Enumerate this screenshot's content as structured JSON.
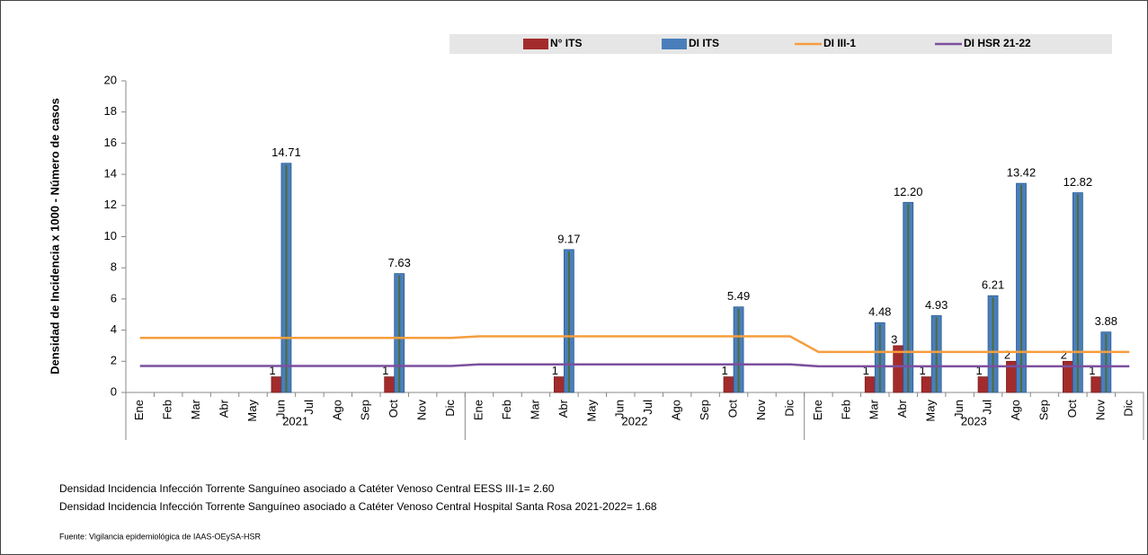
{
  "chart_data": {
    "type": "bar",
    "y_axis_label": "Densidad de Incidencia x 1000 - Número de casos",
    "categories": [
      "Ene",
      "Feb",
      "Mar",
      "Abr",
      "May",
      "Jun",
      "Jul",
      "Ago",
      "Sep",
      "Oct",
      "Nov",
      "Dic",
      "Ene",
      "Feb",
      "Mar",
      "Abr",
      "May",
      "Jun",
      "Jul",
      "Ago",
      "Sep",
      "Oct",
      "Nov",
      "Dic",
      "Ene",
      "Feb",
      "Mar",
      "Abr",
      "May",
      "Jun",
      "Jul",
      "Ago",
      "Sep",
      "Oct",
      "Nov",
      "Dic"
    ],
    "groups": [
      "2021",
      "2022",
      "2023"
    ],
    "ylim": [
      0,
      20
    ],
    "yticks": [
      0,
      2,
      4,
      6,
      8,
      10,
      12,
      14,
      16,
      18,
      20
    ],
    "series": [
      {
        "name": "N° ITS",
        "type": "bar",
        "color": "#a32b2b",
        "values": [
          null,
          null,
          null,
          null,
          null,
          1,
          null,
          null,
          null,
          1,
          null,
          null,
          null,
          null,
          null,
          1,
          null,
          null,
          null,
          null,
          null,
          1,
          null,
          null,
          null,
          null,
          1,
          3,
          1,
          null,
          1,
          2,
          null,
          2,
          1,
          null
        ]
      },
      {
        "name": "DI ITS",
        "type": "bar",
        "color": "#4a7ebb",
        "values": [
          null,
          null,
          null,
          null,
          null,
          14.71,
          null,
          null,
          null,
          7.63,
          null,
          null,
          null,
          null,
          null,
          9.17,
          null,
          null,
          null,
          null,
          null,
          5.49,
          null,
          null,
          null,
          null,
          4.48,
          12.2,
          4.93,
          null,
          6.21,
          13.42,
          null,
          12.82,
          3.88,
          null
        ],
        "value_labels": [
          null,
          null,
          null,
          null,
          null,
          "14.71",
          null,
          null,
          null,
          "7.63",
          null,
          null,
          null,
          null,
          null,
          "9.17",
          null,
          null,
          null,
          null,
          null,
          "5.49",
          null,
          null,
          null,
          null,
          "4.48",
          "12.20",
          "4.93",
          null,
          "6.21",
          "13.42",
          null,
          "12.82",
          "3.88",
          null
        ]
      },
      {
        "name": "DI III-1",
        "type": "line",
        "color": "#f59d3d",
        "values": [
          3.5,
          3.5,
          3.5,
          3.5,
          3.5,
          3.5,
          3.5,
          3.5,
          3.5,
          3.5,
          3.5,
          3.5,
          3.6,
          3.6,
          3.6,
          3.6,
          3.6,
          3.6,
          3.6,
          3.6,
          3.6,
          3.6,
          3.6,
          3.6,
          2.6,
          2.6,
          2.6,
          2.6,
          2.6,
          2.6,
          2.6,
          2.6,
          2.6,
          2.6,
          2.6,
          2.6
        ]
      },
      {
        "name": "DI HSR 21-22",
        "type": "line",
        "color": "#7c4f9e",
        "values": [
          1.7,
          1.7,
          1.7,
          1.7,
          1.7,
          1.7,
          1.7,
          1.7,
          1.7,
          1.7,
          1.7,
          1.7,
          1.8,
          1.8,
          1.8,
          1.8,
          1.8,
          1.8,
          1.8,
          1.8,
          1.8,
          1.8,
          1.8,
          1.8,
          1.68,
          1.68,
          1.68,
          1.68,
          1.68,
          1.68,
          1.68,
          1.68,
          1.68,
          1.68,
          1.68,
          1.68
        ]
      }
    ],
    "notes": [
      "Densidad Incidencia Infección Torrente Sanguíneo asociado a Catéter Venoso Central EESS III-1= 2.60",
      "Densidad Incidencia Infección Torrente Sanguíneo asociado a Catéter Venoso Central Hospital Santa Rosa 2021-2022=  1.68"
    ],
    "source": "Fuente: Vigilancia epidemiológica de IAAS-OEySA-HSR"
  }
}
